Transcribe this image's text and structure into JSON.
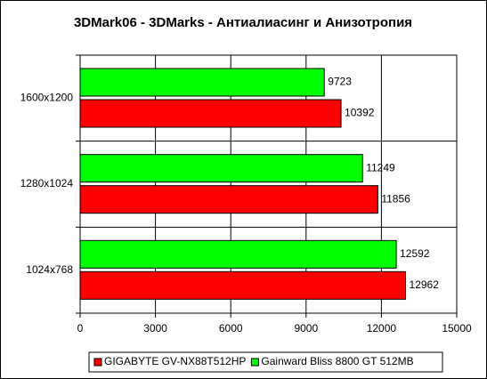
{
  "chart_data": {
    "type": "hbar",
    "title": "3DMark06 - 3DMarks - Антиалиасинг и Анизотропия",
    "categories": [
      "1600x1200",
      "1280x1024",
      "1024x768"
    ],
    "series": [
      {
        "name": "GIGABYTE GV-NX88T512HP",
        "color": "#ff0000",
        "values": [
          10392,
          11856,
          12962
        ]
      },
      {
        "name": "Gainward Bliss 8800 GT 512MB",
        "color": "#00ff00",
        "values": [
          9723,
          11249,
          12592
        ]
      }
    ],
    "xlim": [
      0,
      15000
    ],
    "xticks": [
      0,
      3000,
      6000,
      9000,
      12000,
      15000
    ],
    "grid": true,
    "legend": "bottom"
  }
}
